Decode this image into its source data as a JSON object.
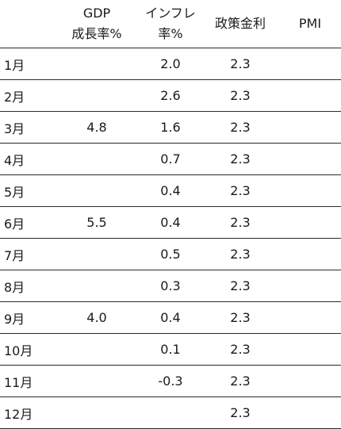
{
  "header": {
    "month": "",
    "gdp_line1": "GDP",
    "gdp_line2": "成長率%",
    "inflation_line1": "インフレ",
    "inflation_line2": "率%",
    "policy_rate": "政策金利",
    "pmi": "PMI"
  },
  "rows": [
    {
      "month": "1月",
      "gdp": "",
      "inflation": "2.0",
      "policy_rate": "2.3",
      "pmi": ""
    },
    {
      "month": "2月",
      "gdp": "",
      "inflation": "2.6",
      "policy_rate": "2.3",
      "pmi": ""
    },
    {
      "month": "3月",
      "gdp": "4.8",
      "inflation": "1.6",
      "policy_rate": "2.3",
      "pmi": ""
    },
    {
      "month": "4月",
      "gdp": "",
      "inflation": "0.7",
      "policy_rate": "2.3",
      "pmi": ""
    },
    {
      "month": "5月",
      "gdp": "",
      "inflation": "0.4",
      "policy_rate": "2.3",
      "pmi": ""
    },
    {
      "month": "6月",
      "gdp": "5.5",
      "inflation": "0.4",
      "policy_rate": "2.3",
      "pmi": ""
    },
    {
      "month": "7月",
      "gdp": "",
      "inflation": "0.5",
      "policy_rate": "2.3",
      "pmi": ""
    },
    {
      "month": "8月",
      "gdp": "",
      "inflation": "0.3",
      "policy_rate": "2.3",
      "pmi": ""
    },
    {
      "month": "9月",
      "gdp": "4.0",
      "inflation": "0.4",
      "policy_rate": "2.3",
      "pmi": ""
    },
    {
      "month": "10月",
      "gdp": "",
      "inflation": "0.1",
      "policy_rate": "2.3",
      "pmi": ""
    },
    {
      "month": "11月",
      "gdp": "",
      "inflation": "-0.3",
      "policy_rate": "2.3",
      "pmi": ""
    },
    {
      "month": "12月",
      "gdp": "",
      "inflation": "",
      "policy_rate": "2.3",
      "pmi": ""
    }
  ]
}
